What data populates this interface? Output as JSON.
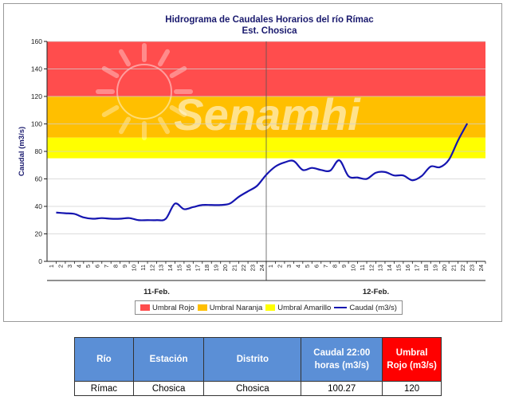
{
  "chart_data": {
    "type": "line",
    "title": "Hidrograma de Caudales Horarios del río Rímac",
    "subtitle": "Est. Chosica",
    "ylabel": "Caudal  (m3/s)",
    "ylim": [
      0,
      160
    ],
    "yticks": [
      0,
      20,
      40,
      60,
      80,
      100,
      120,
      140,
      160
    ],
    "hours_per_day": 24,
    "x_tick_labels": [
      "1",
      "2",
      "3",
      "4",
      "5",
      "6",
      "7",
      "8",
      "9",
      "10",
      "11",
      "12",
      "13",
      "14",
      "15",
      "16",
      "17",
      "18",
      "19",
      "20",
      "21",
      "22",
      "23",
      "24"
    ],
    "days": [
      "11-Feb.",
      "12-Feb."
    ],
    "bands": [
      {
        "name": "Umbral Rojo",
        "from": 120,
        "to": 160,
        "color": "#ff4d4d"
      },
      {
        "name": "Umbral Naranja",
        "from": 90,
        "to": 120,
        "color": "#ffbf00"
      },
      {
        "name": "Umbral Amarillo",
        "from": 75,
        "to": 90,
        "color": "#ffff00"
      }
    ],
    "series": [
      {
        "name": "Caudal (m3/s)",
        "color": "#1515b0",
        "values": [
          35.5,
          35,
          34.5,
          32,
          31,
          31.5,
          31,
          31,
          31.5,
          30,
          30,
          30,
          31,
          42,
          38,
          39.5,
          41,
          41,
          41,
          42,
          47,
          51,
          55,
          63,
          69,
          72,
          73,
          66.5,
          68,
          66.5,
          66,
          73.5,
          62,
          61,
          60,
          64.5,
          65,
          62.5,
          62.5,
          59,
          62,
          69,
          68.5,
          74,
          88,
          100.27
        ]
      }
    ],
    "watermark": "Senamhi"
  },
  "legend": {
    "rojo": "Umbral Rojo",
    "naranja": "Umbral Naranja",
    "amarillo": "Umbral Amarillo",
    "caudal": "Caudal (m3/s)"
  },
  "table": {
    "headers": {
      "rio": "Río",
      "estacion": "Estación",
      "distrito": "Distrito",
      "caudal": "Caudal 22:00 horas (m3/s)",
      "umbral": "Umbral Rojo (m3/s)"
    },
    "row": {
      "rio": "Rímac",
      "estacion": "Chosica",
      "distrito": "Chosica",
      "caudal": "100.27",
      "umbral": "120"
    }
  }
}
